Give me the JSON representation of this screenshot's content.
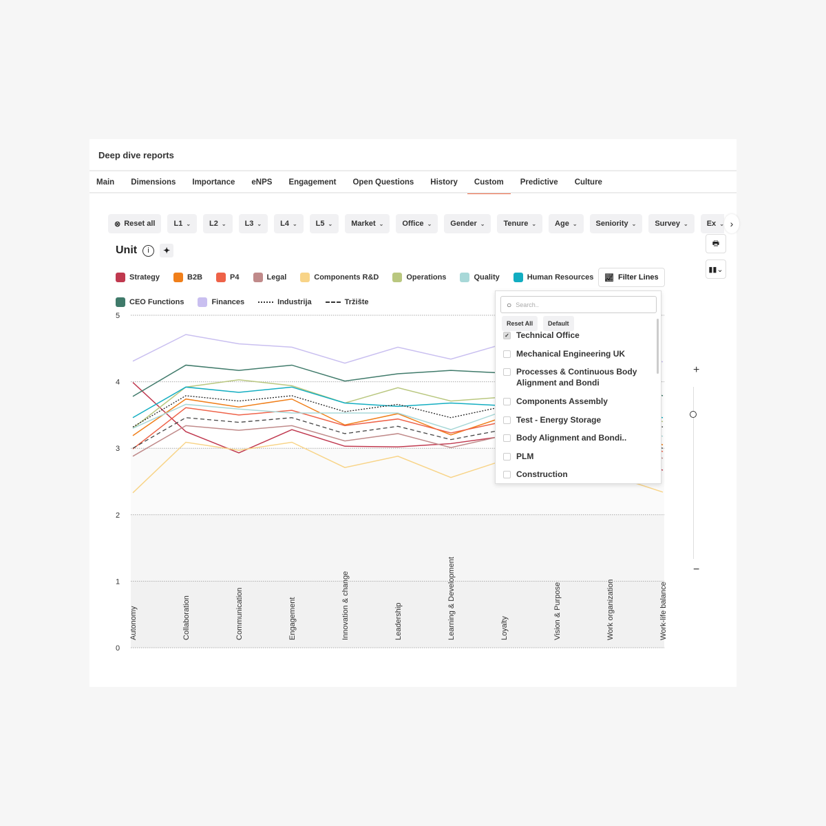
{
  "header": {
    "title": "Deep dive reports"
  },
  "tabs": [
    {
      "label": "Main"
    },
    {
      "label": "Dimensions"
    },
    {
      "label": "Importance"
    },
    {
      "label": "eNPS"
    },
    {
      "label": "Engagement"
    },
    {
      "label": "Open Questions"
    },
    {
      "label": "History"
    },
    {
      "label": "Custom",
      "active": true
    },
    {
      "label": "Predictive"
    },
    {
      "label": "Culture"
    }
  ],
  "filters": {
    "reset_label": "Reset all",
    "items": [
      "L1",
      "L2",
      "L3",
      "L4",
      "L5",
      "Market",
      "Office",
      "Gender",
      "Tenure",
      "Age",
      "Seniority",
      "Survey",
      "Ex"
    ]
  },
  "unit": {
    "title": "Unit",
    "info_icon": "info-icon",
    "ai_icon": "sparkle-icon"
  },
  "filter_lines": {
    "label": "Filter Lines",
    "search_placeholder": "Search..",
    "reset_all": "Reset All",
    "default": "Default",
    "options": [
      {
        "label": "Technical Office",
        "checked": true
      },
      {
        "label": "Mechanical Engineering UK",
        "checked": false
      },
      {
        "label": "Processes & Continuous Body Alignment and Bondi",
        "checked": false
      },
      {
        "label": "Components Assembly",
        "checked": false
      },
      {
        "label": "Test - Energy Storage",
        "checked": false
      },
      {
        "label": "Body Alignment and Bondi..",
        "checked": false
      },
      {
        "label": "PLM",
        "checked": false
      },
      {
        "label": "Construction",
        "checked": false
      }
    ]
  },
  "zoom": {
    "plus": "+",
    "minus": "−"
  },
  "accent": "#e8623c",
  "chart_data": {
    "type": "line",
    "ylim": [
      0,
      5
    ],
    "yticks": [
      "0",
      "1",
      "2",
      "3",
      "4",
      "5"
    ],
    "grid": true,
    "legend_placement": "top",
    "categories": [
      "Autonomy",
      "Collaboration",
      "Communication",
      "Engagement",
      "Innovation & change",
      "Leadership",
      "Learning & Development",
      "Loyalty",
      "Vision & Purpose",
      "Work organization",
      "Work-life balance"
    ],
    "series": [
      {
        "name": "Strategy",
        "color": "#c0394f",
        "style": "solid",
        "values": [
          3.99,
          3.25,
          2.93,
          3.28,
          3.03,
          3.02,
          3.07,
          3.18,
          3.0,
          2.9,
          2.67
        ]
      },
      {
        "name": "B2B",
        "color": "#f07f1a",
        "style": "solid",
        "values": [
          3.19,
          3.74,
          3.62,
          3.74,
          3.35,
          3.52,
          3.2,
          3.47,
          3.4,
          3.35,
          3.05
        ]
      },
      {
        "name": "P4",
        "color": "#ee6248",
        "style": "solid",
        "values": [
          2.99,
          3.61,
          3.5,
          3.57,
          3.34,
          3.44,
          3.23,
          3.4,
          3.3,
          3.2,
          2.95
        ]
      },
      {
        "name": "Legal",
        "color": "#c08a8a",
        "style": "solid",
        "values": [
          2.88,
          3.34,
          3.27,
          3.34,
          3.11,
          3.22,
          3.01,
          3.19,
          3.1,
          3.0,
          2.85
        ]
      },
      {
        "name": "Components R&D",
        "color": "#f8d488",
        "style": "solid",
        "values": [
          2.33,
          3.09,
          2.97,
          3.09,
          2.71,
          2.88,
          2.56,
          2.82,
          2.7,
          2.6,
          2.34
        ]
      },
      {
        "name": "Operations",
        "color": "#b9c77f",
        "style": "solid",
        "values": [
          3.3,
          3.92,
          4.03,
          3.94,
          3.68,
          3.91,
          3.71,
          3.77,
          3.7,
          3.6,
          3.4
        ]
      },
      {
        "name": "Quality",
        "color": "#a8d8d8",
        "style": "solid",
        "values": [
          3.3,
          3.66,
          3.59,
          3.53,
          3.53,
          3.53,
          3.28,
          3.56,
          3.4,
          3.35,
          3.18
        ]
      },
      {
        "name": "Human Resources",
        "color": "#12adc1",
        "style": "solid",
        "values": [
          3.46,
          3.92,
          3.84,
          3.92,
          3.68,
          3.63,
          3.68,
          3.64,
          3.6,
          3.55,
          3.46
        ]
      },
      {
        "name": "CEO Functions",
        "color": "#3f7a6a",
        "style": "solid",
        "values": [
          3.78,
          4.25,
          4.17,
          4.25,
          4.01,
          4.12,
          4.17,
          4.13,
          4.0,
          3.95,
          3.79
        ]
      },
      {
        "name": "Finances",
        "color": "#c9bff0",
        "style": "solid",
        "values": [
          4.31,
          4.71,
          4.57,
          4.52,
          4.28,
          4.52,
          4.34,
          4.57,
          4.5,
          4.4,
          4.3
        ]
      },
      {
        "name": "Industrija",
        "color": "#222222",
        "style": "dotted",
        "values": [
          3.32,
          3.79,
          3.71,
          3.79,
          3.55,
          3.66,
          3.46,
          3.63,
          3.5,
          3.45,
          3.32
        ]
      },
      {
        "name": "Tržište",
        "color": "#444444",
        "style": "dashed",
        "values": [
          3.0,
          3.46,
          3.39,
          3.46,
          3.22,
          3.33,
          3.13,
          3.28,
          3.2,
          3.15,
          3.0
        ]
      }
    ]
  }
}
